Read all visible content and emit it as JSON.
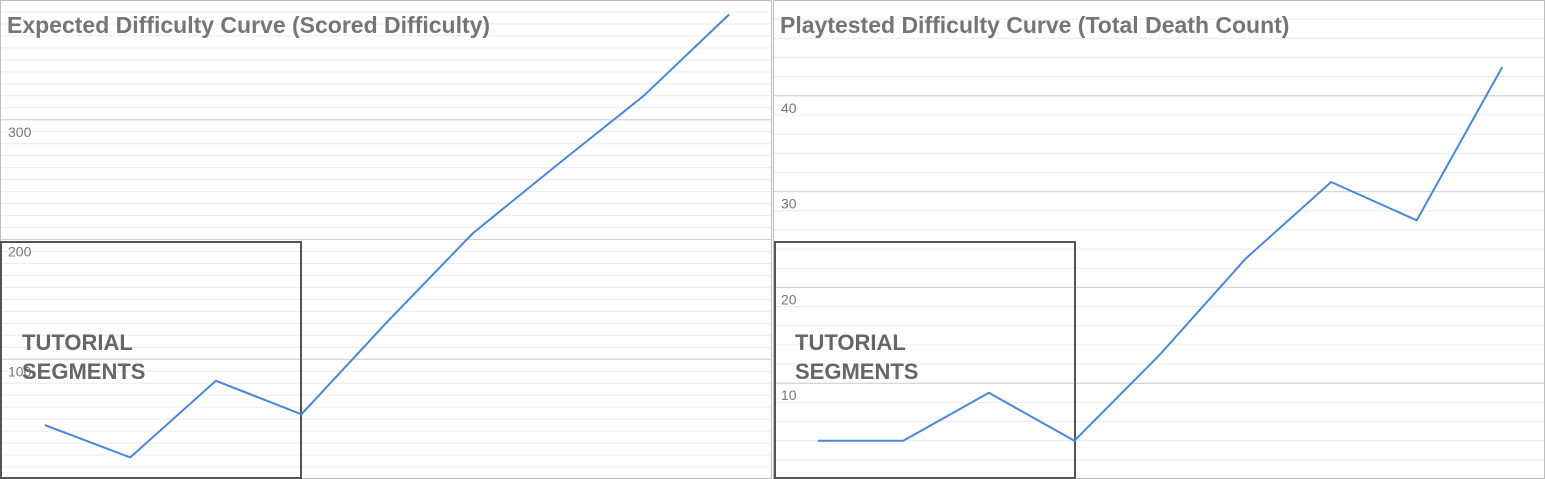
{
  "chart_data": [
    {
      "type": "line",
      "title": "Expected Difficulty Curve (Scored Difficulty)",
      "annotation": "TUTORIAL SEGMENTS",
      "series": [
        {
          "color": "#4a86d8",
          "values": [
            45,
            18,
            82,
            54,
            131,
            205,
            263,
            320,
            388
          ]
        }
      ],
      "ylim": [
        0,
        400
      ],
      "yticks": [
        100,
        200,
        300
      ],
      "grid": true
    },
    {
      "type": "line",
      "title": "Playtested Difficulty Curve (Total Death Count)",
      "annotation": "TUTORIAL SEGMENTS",
      "series": [
        {
          "color": "#4a86d8",
          "values": [
            4,
            4,
            9,
            4,
            13,
            23,
            31,
            27,
            43
          ]
        }
      ],
      "ylim": [
        0,
        50
      ],
      "yticks": [
        10,
        20,
        30,
        40
      ],
      "grid": true
    }
  ]
}
